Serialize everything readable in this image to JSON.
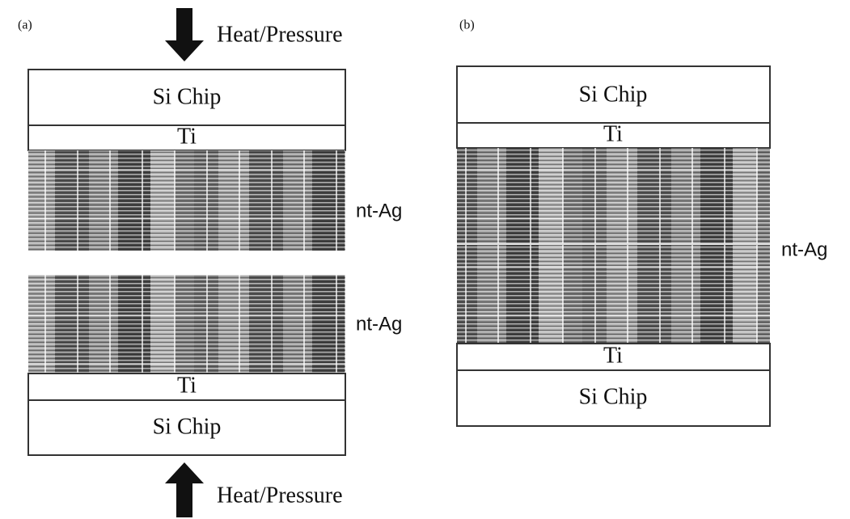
{
  "panels": [
    {
      "label": "(a)",
      "top_force": "Heat/Pressure",
      "top_chip": "Si Chip",
      "top_ti": "Ti",
      "top_ag": "nt-Ag",
      "bottom_ag": "nt-Ag",
      "bottom_ti": "Ti",
      "bottom_chip": "Si Chip",
      "bottom_force": "Heat/Pressure"
    },
    {
      "label": "(b)",
      "top_chip": "Si Chip",
      "top_ti": "Ti",
      "ag": "nt-Ag",
      "bottom_ti": "Ti",
      "bottom_chip": "Si Chip"
    }
  ]
}
